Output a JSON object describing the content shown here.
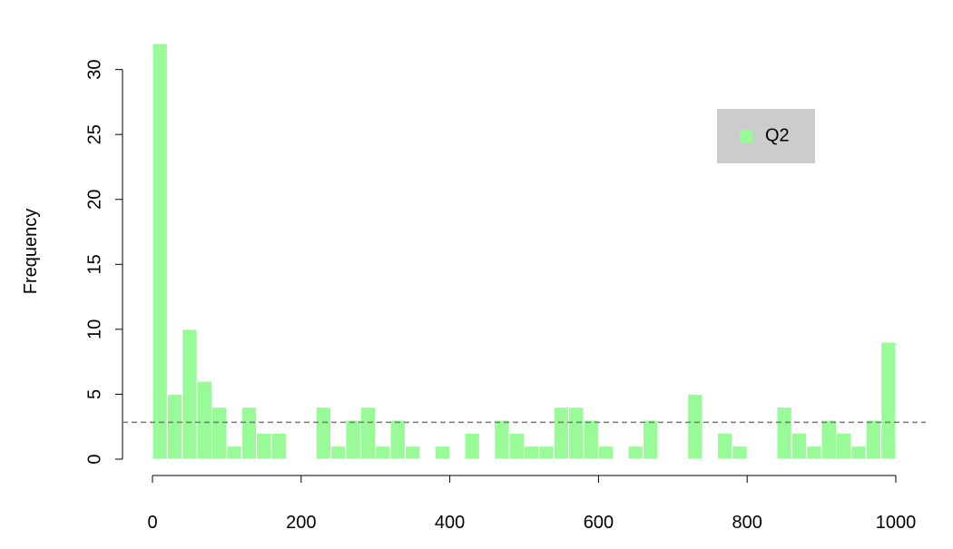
{
  "chart_data": {
    "type": "histogram",
    "y_label": "Frequency",
    "bins": [
      0,
      20,
      40,
      60,
      80,
      100,
      120,
      140,
      160,
      180,
      200,
      220,
      240,
      260,
      280,
      300,
      320,
      340,
      360,
      380,
      400,
      420,
      440,
      460,
      480,
      500,
      520,
      540,
      560,
      580,
      600,
      620,
      640,
      660,
      680,
      700,
      720,
      740,
      760,
      780,
      800,
      820,
      840,
      860,
      880,
      900,
      920,
      940,
      960,
      980,
      1000
    ],
    "series": [
      {
        "name": "Q2",
        "color": "#98fb98",
        "values": [
          32,
          5,
          10,
          6,
          4,
          1,
          4,
          2,
          2,
          0,
          0,
          4,
          1,
          3,
          4,
          1,
          3,
          1,
          0,
          1,
          0,
          2,
          0,
          3,
          2,
          1,
          1,
          4,
          4,
          3,
          1,
          0,
          1,
          3,
          0,
          0,
          5,
          0,
          2,
          1,
          0,
          0,
          4,
          2,
          1,
          3,
          2,
          1,
          3,
          9
        ]
      }
    ],
    "mean_line": 2.84,
    "xlim": [
      0,
      1000
    ],
    "xticks": [
      0,
      200,
      400,
      600,
      800,
      1000
    ],
    "ylim": [
      0,
      32
    ],
    "yticks": [
      0,
      5,
      10,
      15,
      20,
      25,
      30
    ],
    "legend_position": "top-right"
  }
}
